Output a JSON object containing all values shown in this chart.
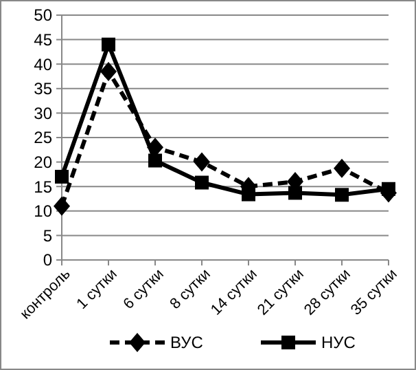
{
  "chart_data": {
    "type": "line",
    "categories": [
      "контроль",
      "1 сутки",
      "6 сутки",
      "8 сутки",
      "14 сутки",
      "21 сутки",
      "28 сутки",
      "35 сутки"
    ],
    "series": [
      {
        "name": "ВУС",
        "color": "#000000",
        "marker": "diamond",
        "line_style": "dashed",
        "values": [
          11,
          38.5,
          23,
          20,
          15,
          16,
          18.7,
          13.7
        ]
      },
      {
        "name": "НУС",
        "color": "#000000",
        "marker": "square",
        "line_style": "solid",
        "values": [
          17,
          44,
          20.3,
          15.8,
          13.4,
          13.7,
          13.3,
          14.5
        ]
      }
    ],
    "ylim": [
      0,
      50
    ],
    "yticks": [
      0,
      5,
      10,
      15,
      20,
      25,
      30,
      35,
      40,
      45,
      50
    ],
    "grid": "y",
    "legend": "bottom"
  }
}
